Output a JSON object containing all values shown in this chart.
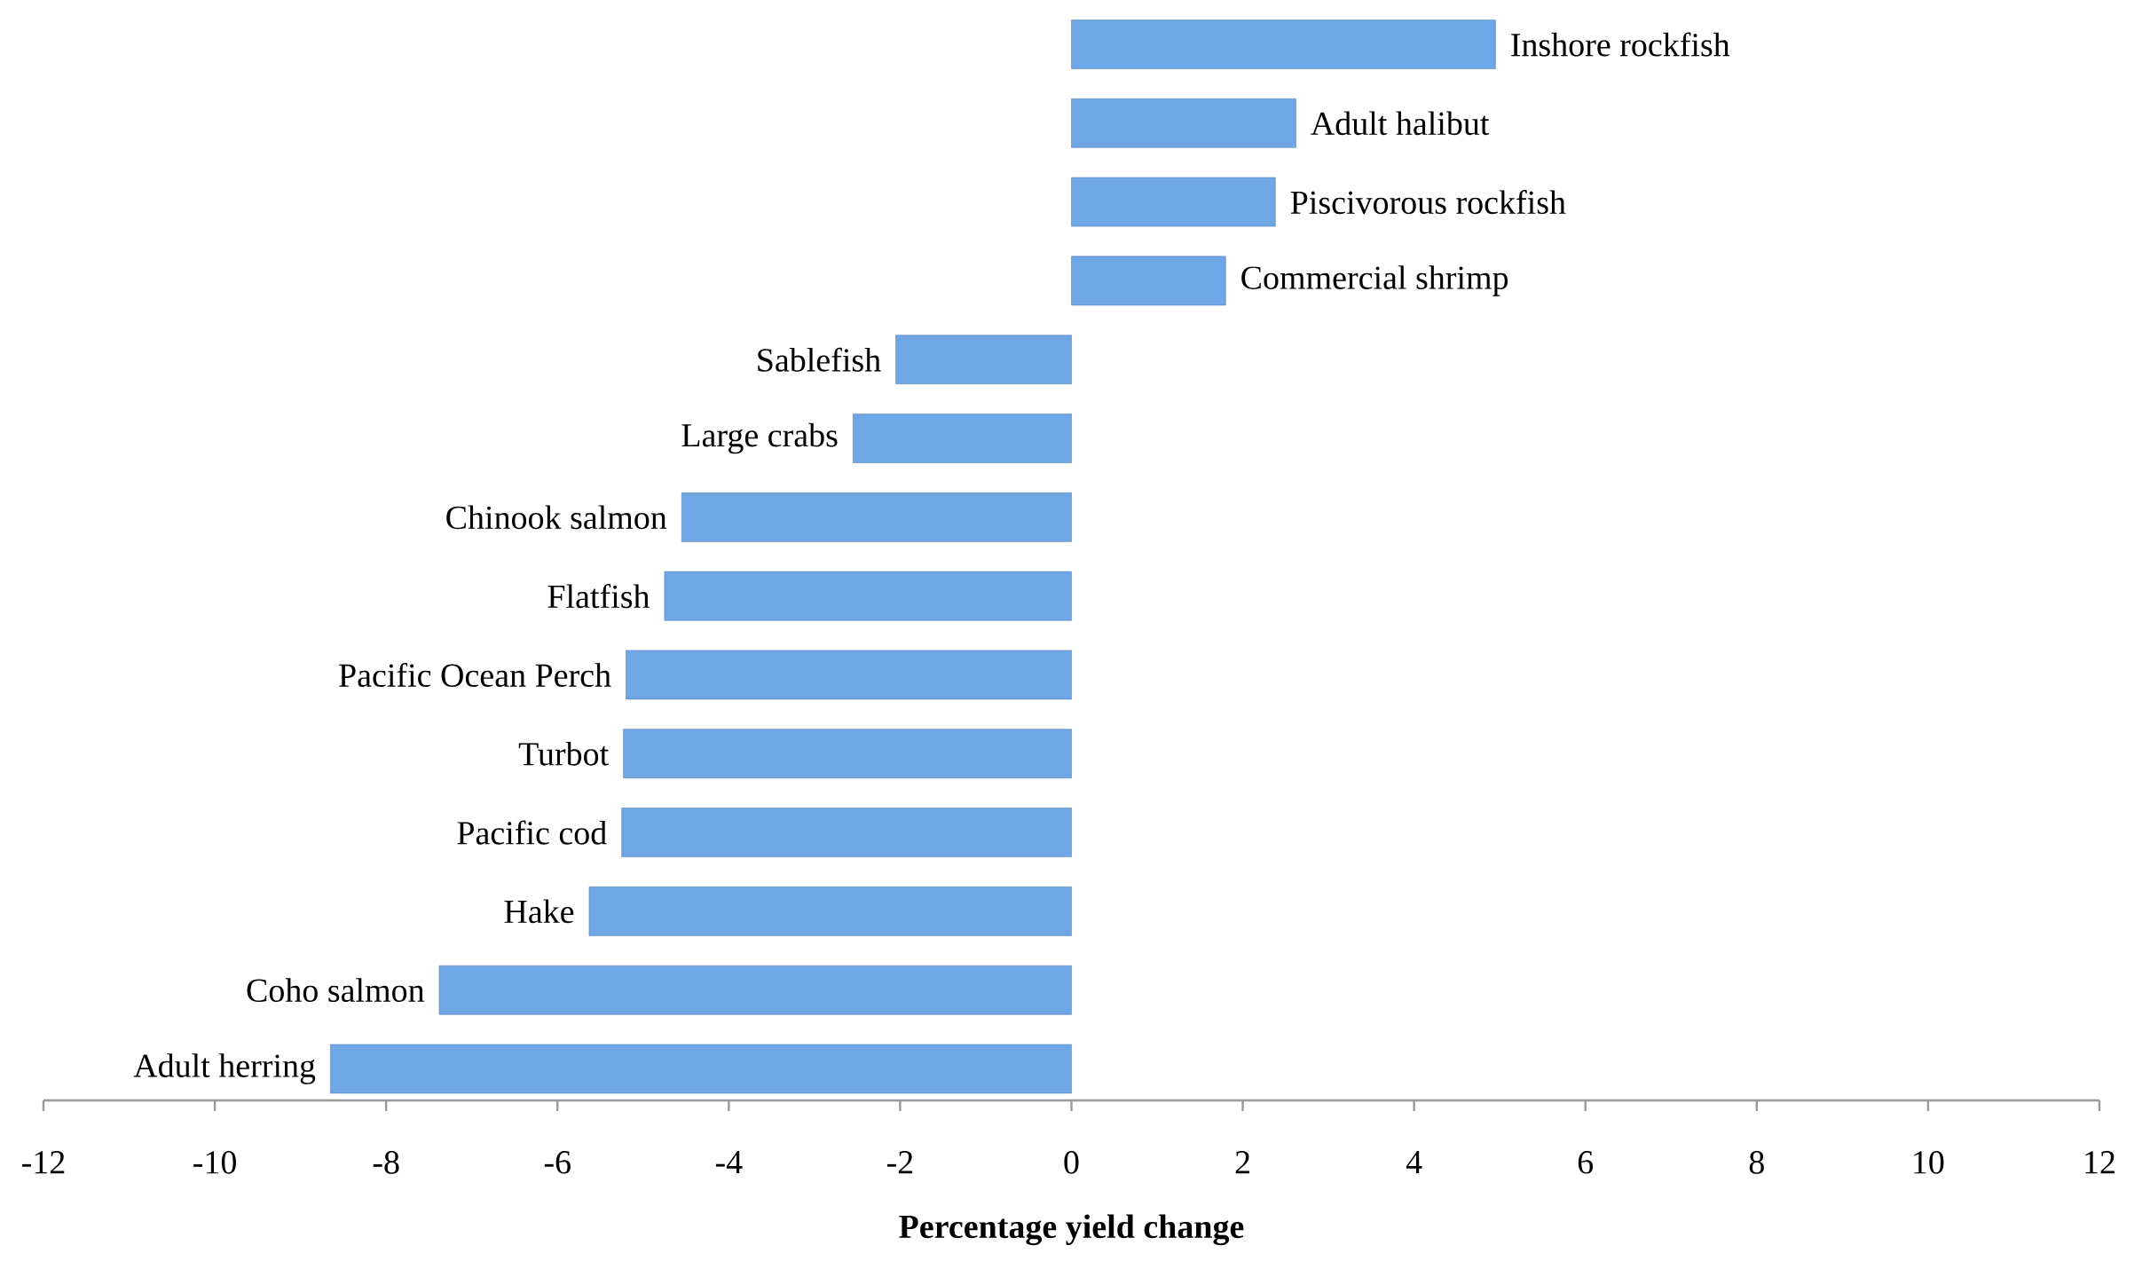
{
  "chart_data": {
    "type": "bar",
    "orientation": "horizontal",
    "xlabel": "Percentage yield change",
    "categories": [
      "Inshore rockfish",
      "Adult halibut",
      "Piscivorous rockfish",
      "Commercial shrimp",
      "Sablefish",
      "Large crabs",
      "Chinook salmon",
      "Flatfish",
      "Pacific Ocean Perch",
      "Turbot",
      "Pacific cod",
      "Hake",
      "Coho salmon",
      "Adult herring"
    ],
    "values": [
      4.95,
      2.62,
      2.38,
      1.8,
      -2.05,
      -2.55,
      -4.55,
      -4.75,
      -5.2,
      -5.23,
      -5.25,
      -5.63,
      -7.38,
      -8.65
    ],
    "color": "#6fa6e6",
    "xlim": [
      -12,
      12
    ],
    "xticks": [
      -12,
      -10,
      -8,
      -6,
      -4,
      -2,
      0,
      2,
      4,
      6,
      8,
      10,
      12
    ]
  }
}
